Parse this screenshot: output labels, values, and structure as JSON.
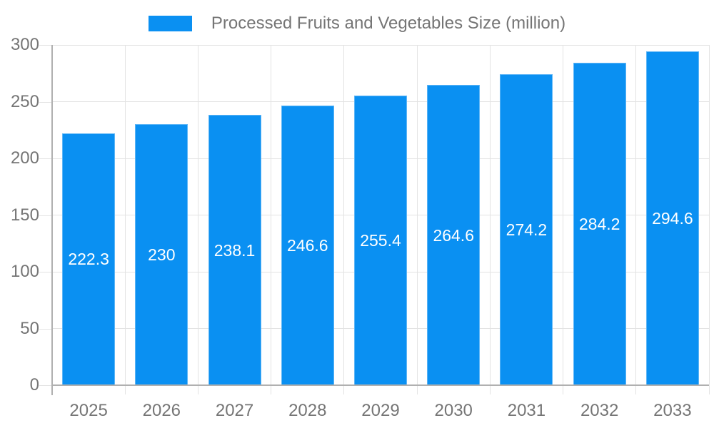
{
  "legend": {
    "label": "Processed Fruits and Vegetables Size (million)"
  },
  "chart_data": {
    "type": "bar",
    "title": "Processed Fruits and Vegetables Size (million)",
    "categories": [
      "2025",
      "2026",
      "2027",
      "2028",
      "2029",
      "2030",
      "2031",
      "2032",
      "2033"
    ],
    "values": [
      222.3,
      230,
      238.1,
      246.6,
      255.4,
      264.6,
      274.2,
      284.2,
      294.6
    ],
    "value_labels": [
      "222.3",
      "230",
      "238.1",
      "246.6",
      "255.4",
      "264.6",
      "274.2",
      "284.2",
      "294.6"
    ],
    "xlabel": "",
    "ylabel": "",
    "ylim": [
      0,
      300
    ],
    "yticks": [
      0,
      50,
      100,
      150,
      200,
      250,
      300
    ],
    "grid": true,
    "legend_position": "top-center"
  },
  "colors": {
    "bar": "#0a90f2",
    "grid": "#e3e3e3",
    "axis": "#b0b0b0",
    "axis_text": "#757575",
    "legend_text": "#757575",
    "value_text": "#ffffff",
    "background": "#ffffff"
  }
}
